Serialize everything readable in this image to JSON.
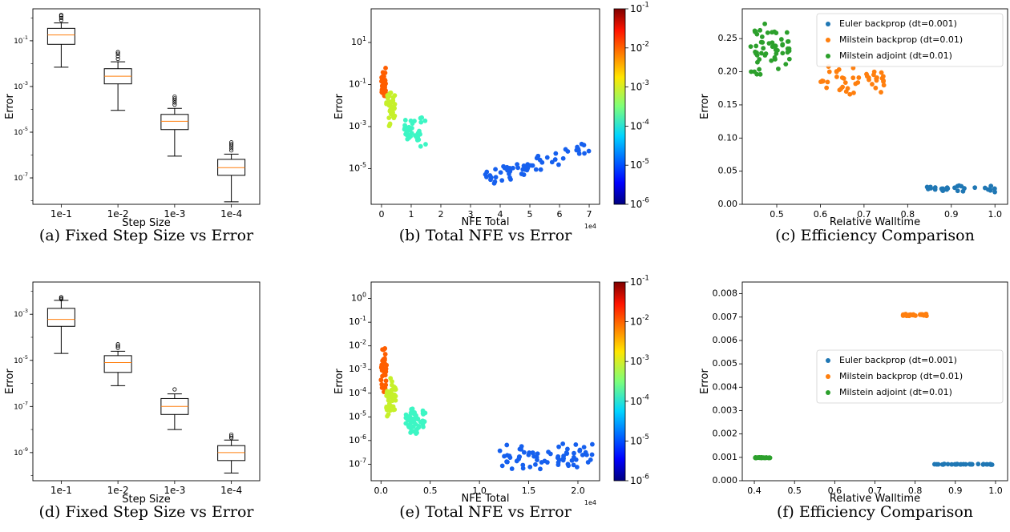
{
  "colors": {
    "euler": "#1f77b4",
    "milstein_backprop": "#ff7f0e",
    "milstein_adjoint": "#2ca02c",
    "median": "#ff7f0e"
  },
  "chart_data": [
    {
      "id": "a",
      "type": "box",
      "caption": "(a) Fixed Step Size vs Error",
      "xlabel": "Step Size",
      "ylabel": "Error",
      "ylog": true,
      "ylim": [
        7e-09,
        2.5
      ],
      "yticks": [
        {
          "v": 0.1,
          "label": "10^-1"
        },
        {
          "v": 0.001,
          "label": "10^-3"
        },
        {
          "v": 1e-05,
          "label": "10^-5"
        },
        {
          "v": 1e-07,
          "label": "10^-7"
        }
      ],
      "categories": [
        "1e-1",
        "1e-2",
        "1e-3",
        "1e-4"
      ],
      "boxes": [
        {
          "whislo": 0.007,
          "q1": 0.07,
          "med": 0.18,
          "q3": 0.35,
          "whishi": 0.6,
          "fliers": [
            0.8,
            1.0,
            1.2,
            1.35
          ]
        },
        {
          "whislo": 9e-05,
          "q1": 0.0013,
          "med": 0.0028,
          "q3": 0.006,
          "whishi": 0.012,
          "fliers": [
            0.016,
            0.021,
            0.027,
            0.032
          ]
        },
        {
          "whislo": 9e-07,
          "q1": 1.3e-05,
          "med": 3e-05,
          "q3": 6e-05,
          "whishi": 0.00011,
          "fliers": [
            0.00016,
            0.0002,
            0.00025,
            0.0003,
            0.00036
          ]
        },
        {
          "whislo": 9e-09,
          "q1": 1.3e-07,
          "med": 2.8e-07,
          "q3": 6.5e-07,
          "whishi": 1.1e-06,
          "fliers": [
            1.6e-06,
            2e-06,
            2.5e-06,
            3e-06,
            3.6e-06
          ]
        }
      ]
    },
    {
      "id": "b",
      "type": "scatter",
      "caption": "(b) Total NFE vs Error",
      "xlabel": "NFE Total",
      "ylabel": "Error",
      "ylog": true,
      "xexp": "1e4",
      "xlim": [
        -0.35,
        7.35
      ],
      "ylim": [
        2e-07,
        400
      ],
      "xticks": [
        {
          "v": 0,
          "label": "0"
        },
        {
          "v": 1,
          "label": "1"
        },
        {
          "v": 2,
          "label": "2"
        },
        {
          "v": 3,
          "label": "3"
        },
        {
          "v": 4,
          "label": "4"
        },
        {
          "v": 5,
          "label": "5"
        },
        {
          "v": 6,
          "label": "6"
        },
        {
          "v": 7,
          "label": "7"
        }
      ],
      "yticks": [
        {
          "v": 10,
          "label": "10^1"
        },
        {
          "v": 0.1,
          "label": "10^-1"
        },
        {
          "v": 0.001,
          "label": "10^-3"
        },
        {
          "v": 1e-05,
          "label": "10^-5"
        }
      ],
      "colorbar": {
        "ticks": [
          "10^-1",
          "10^-2",
          "10^-3",
          "10^-4",
          "10^-5",
          "10^-6"
        ],
        "range_log10": [
          -6,
          -1
        ]
      },
      "clusters": [
        {
          "step": 0.01,
          "color": "#ff5e00",
          "n": 40,
          "x": [
            0,
            0.15
          ],
          "y": [
            0.012,
            0.8
          ],
          "seed": 3
        },
        {
          "step": 0.001,
          "color": "#c6f02a",
          "n": 40,
          "x": [
            0.15,
            0.45
          ],
          "y": [
            0.0008,
            0.1
          ],
          "seed": 7
        },
        {
          "step": 0.0001,
          "color": "#3cf6c4",
          "n": 40,
          "x": [
            0.75,
            1.5
          ],
          "y": [
            8e-05,
            0.005
          ],
          "seed": 11
        },
        {
          "step": 1e-05,
          "color": "#1660ee",
          "n": 60,
          "x": [
            3.5,
            7.0
          ],
          "y": [
            1.5e-06,
            0.0002
          ],
          "seed": 19,
          "trend": true
        }
      ]
    },
    {
      "id": "c",
      "type": "scatter",
      "caption": "(c) Efficiency Comparison",
      "xlabel": "Relative Walltime",
      "ylabel": "Error",
      "ylog": false,
      "xlim": [
        0.421,
        1.029
      ],
      "ylim": [
        0,
        0.295
      ],
      "xticks": [
        {
          "v": 0.5,
          "label": "0.5"
        },
        {
          "v": 0.6,
          "label": "0.6"
        },
        {
          "v": 0.7,
          "label": "0.7"
        },
        {
          "v": 0.8,
          "label": "0.8"
        },
        {
          "v": 0.9,
          "label": "0.9"
        },
        {
          "v": 1.0,
          "label": "1.0"
        }
      ],
      "yticks": [
        {
          "v": 0,
          "label": "0.00"
        },
        {
          "v": 0.05,
          "label": "0.05"
        },
        {
          "v": 0.1,
          "label": "0.10"
        },
        {
          "v": 0.15,
          "label": "0.15"
        },
        {
          "v": 0.2,
          "label": "0.20"
        },
        {
          "v": 0.25,
          "label": "0.25"
        }
      ],
      "legend_pos": "top-right",
      "series": [
        {
          "name": "Euler backprop (dt=0.001)",
          "color": "#1f77b4",
          "n": 30,
          "x": [
            0.84,
            1.0
          ],
          "y": [
            0.018,
            0.03
          ],
          "seed": 23
        },
        {
          "name": "Milstein backprop (dt=0.01)",
          "color": "#ff7f0e",
          "n": 45,
          "x": [
            0.6,
            0.75
          ],
          "y": [
            0.165,
            0.21
          ],
          "seed": 29
        },
        {
          "name": "Milstein adjoint (dt=0.01)",
          "color": "#2ca02c",
          "n": 55,
          "x": [
            0.44,
            0.53
          ],
          "y": [
            0.19,
            0.28
          ],
          "seed": 31
        }
      ]
    },
    {
      "id": "d",
      "type": "box",
      "caption": "(d) Fixed Step Size vs Error",
      "xlabel": "Step Size",
      "ylabel": "Error",
      "ylog": true,
      "ylim": [
        6e-11,
        0.025
      ],
      "yticks": [
        {
          "v": 0.001,
          "label": "10^-3"
        },
        {
          "v": 1e-05,
          "label": "10^-5"
        },
        {
          "v": 1e-07,
          "label": "10^-7"
        },
        {
          "v": 1e-09,
          "label": "10^-9"
        }
      ],
      "categories": [
        "1e-1",
        "1e-2",
        "1e-3",
        "1e-4"
      ],
      "boxes": [
        {
          "whislo": 2e-05,
          "q1": 0.0003,
          "med": 0.0006,
          "q3": 0.0018,
          "whishi": 0.004,
          "fliers": [
            0.0045,
            0.005,
            0.0055
          ]
        },
        {
          "whislo": 8e-07,
          "q1": 3e-06,
          "med": 8e-06,
          "q3": 1.6e-05,
          "whishi": 2.5e-05,
          "fliers": [
            3.5e-05,
            4.2e-05,
            5e-05
          ]
        },
        {
          "whislo": 1e-08,
          "q1": 4.5e-08,
          "med": 1e-07,
          "q3": 2.2e-07,
          "whishi": 3.5e-07,
          "fliers": [
            5.5e-07
          ]
        },
        {
          "whislo": 1.3e-10,
          "q1": 4.5e-10,
          "med": 1e-09,
          "q3": 2e-09,
          "whishi": 3.5e-09,
          "fliers": [
            4.3e-09,
            5e-09,
            6e-09
          ]
        }
      ]
    },
    {
      "id": "e",
      "type": "scatter",
      "caption": "(e) Total NFE vs Error",
      "xlabel": "NFE Total",
      "ylabel": "Error",
      "ylog": true,
      "xexp": "1e4",
      "xlim": [
        -0.1,
        2.22
      ],
      "ylim": [
        2e-08,
        5
      ],
      "xticks": [
        {
          "v": 0,
          "label": "0.0"
        },
        {
          "v": 0.5,
          "label": "0.5"
        },
        {
          "v": 1.0,
          "label": "1.0"
        },
        {
          "v": 1.5,
          "label": "1.5"
        },
        {
          "v": 2.0,
          "label": "2.0"
        }
      ],
      "yticks": [
        {
          "v": 1,
          "label": "10^0"
        },
        {
          "v": 0.1,
          "label": "10^-1"
        },
        {
          "v": 0.01,
          "label": "10^-2"
        },
        {
          "v": 0.001,
          "label": "10^-3"
        },
        {
          "v": 0.0001,
          "label": "10^-4"
        },
        {
          "v": 1e-05,
          "label": "10^-5"
        },
        {
          "v": 1e-06,
          "label": "10^-6"
        },
        {
          "v": 1e-07,
          "label": "10^-7"
        }
      ],
      "colorbar": {
        "ticks": [
          "10^-1",
          "10^-2",
          "10^-3",
          "10^-4",
          "10^-5",
          "10^-6"
        ],
        "range_log10": [
          -6,
          -1
        ]
      },
      "clusters": [
        {
          "step": 0.01,
          "color": "#ff5e00",
          "n": 40,
          "x": [
            0.0,
            0.06
          ],
          "y": [
            0.0001,
            0.009
          ],
          "seed": 41
        },
        {
          "step": 0.001,
          "color": "#c6f02a",
          "n": 40,
          "x": [
            0.05,
            0.15
          ],
          "y": [
            8e-06,
            0.0007
          ],
          "seed": 43
        },
        {
          "step": 0.0001,
          "color": "#3cf6c4",
          "n": 45,
          "x": [
            0.25,
            0.45
          ],
          "y": [
            1.5e-06,
            3e-05
          ],
          "seed": 47
        },
        {
          "step": 1e-05,
          "color": "#1660ee",
          "n": 70,
          "x": [
            1.2,
            2.15
          ],
          "y": [
            5e-08,
            1e-06
          ],
          "seed": 53
        }
      ]
    },
    {
      "id": "f",
      "type": "scatter",
      "caption": "(f) Efficiency Comparison",
      "xlabel": "Relative Walltime",
      "ylabel": "Error",
      "ylog": false,
      "xlim": [
        0.37,
        1.03
      ],
      "ylim": [
        0,
        0.0085
      ],
      "xticks": [
        {
          "v": 0.4,
          "label": "0.4"
        },
        {
          "v": 0.5,
          "label": "0.5"
        },
        {
          "v": 0.6,
          "label": "0.6"
        },
        {
          "v": 0.7,
          "label": "0.7"
        },
        {
          "v": 0.8,
          "label": "0.8"
        },
        {
          "v": 0.9,
          "label": "0.9"
        },
        {
          "v": 1.0,
          "label": "1.0"
        }
      ],
      "yticks": [
        {
          "v": 0,
          "label": "0.000"
        },
        {
          "v": 0.001,
          "label": "0.001"
        },
        {
          "v": 0.002,
          "label": "0.002"
        },
        {
          "v": 0.003,
          "label": "0.003"
        },
        {
          "v": 0.004,
          "label": "0.004"
        },
        {
          "v": 0.005,
          "label": "0.005"
        },
        {
          "v": 0.006,
          "label": "0.006"
        },
        {
          "v": 0.007,
          "label": "0.007"
        },
        {
          "v": 0.008,
          "label": "0.008"
        }
      ],
      "legend_pos": "center-right",
      "series": [
        {
          "name": "Euler backprop (dt=0.001)",
          "color": "#1f77b4",
          "n": 30,
          "x": [
            0.84,
            1.0
          ],
          "y": [
            0.00068,
            0.00072
          ],
          "seed": 61
        },
        {
          "name": "Milstein backprop (dt=0.01)",
          "color": "#ff7f0e",
          "n": 35,
          "x": [
            0.77,
            0.83
          ],
          "y": [
            0.00704,
            0.00715
          ],
          "seed": 67
        },
        {
          "name": "Milstein adjoint (dt=0.01)",
          "color": "#2ca02c",
          "n": 35,
          "x": [
            0.4,
            0.44
          ],
          "y": [
            0.00097,
            0.001
          ],
          "seed": 71
        }
      ]
    }
  ]
}
